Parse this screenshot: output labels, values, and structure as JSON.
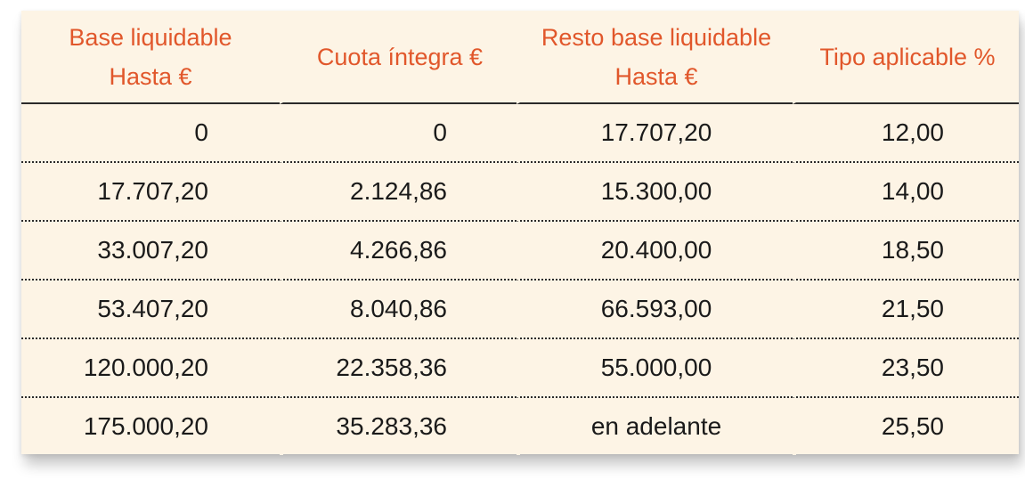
{
  "headers": [
    {
      "line1": "Base liquidable",
      "line2": "Hasta €"
    },
    {
      "line1": "Cuota íntegra €",
      "line2": ""
    },
    {
      "line1": "Resto base liquidable",
      "line2": "Hasta €"
    },
    {
      "line1": "Tipo aplicable %",
      "line2": ""
    }
  ],
  "rows": [
    [
      "0",
      "0",
      "17.707,20",
      "12,00"
    ],
    [
      "17.707,20",
      "2.124,86",
      "15.300,00",
      "14,00"
    ],
    [
      "33.007,20",
      "4.266,86",
      "20.400,00",
      "18,50"
    ],
    [
      "53.407,20",
      "8.040,86",
      "66.593,00",
      "21,50"
    ],
    [
      "120.000,20",
      "22.358,36",
      "55.000,00",
      "23,50"
    ],
    [
      "175.000,20",
      "35.283,36",
      "en adelante",
      "25,50"
    ]
  ],
  "colors": {
    "header_text": "#e1572b",
    "background": "#fdf4e5",
    "body_text": "#1a1a1a",
    "rule": "#2a2a2a"
  }
}
